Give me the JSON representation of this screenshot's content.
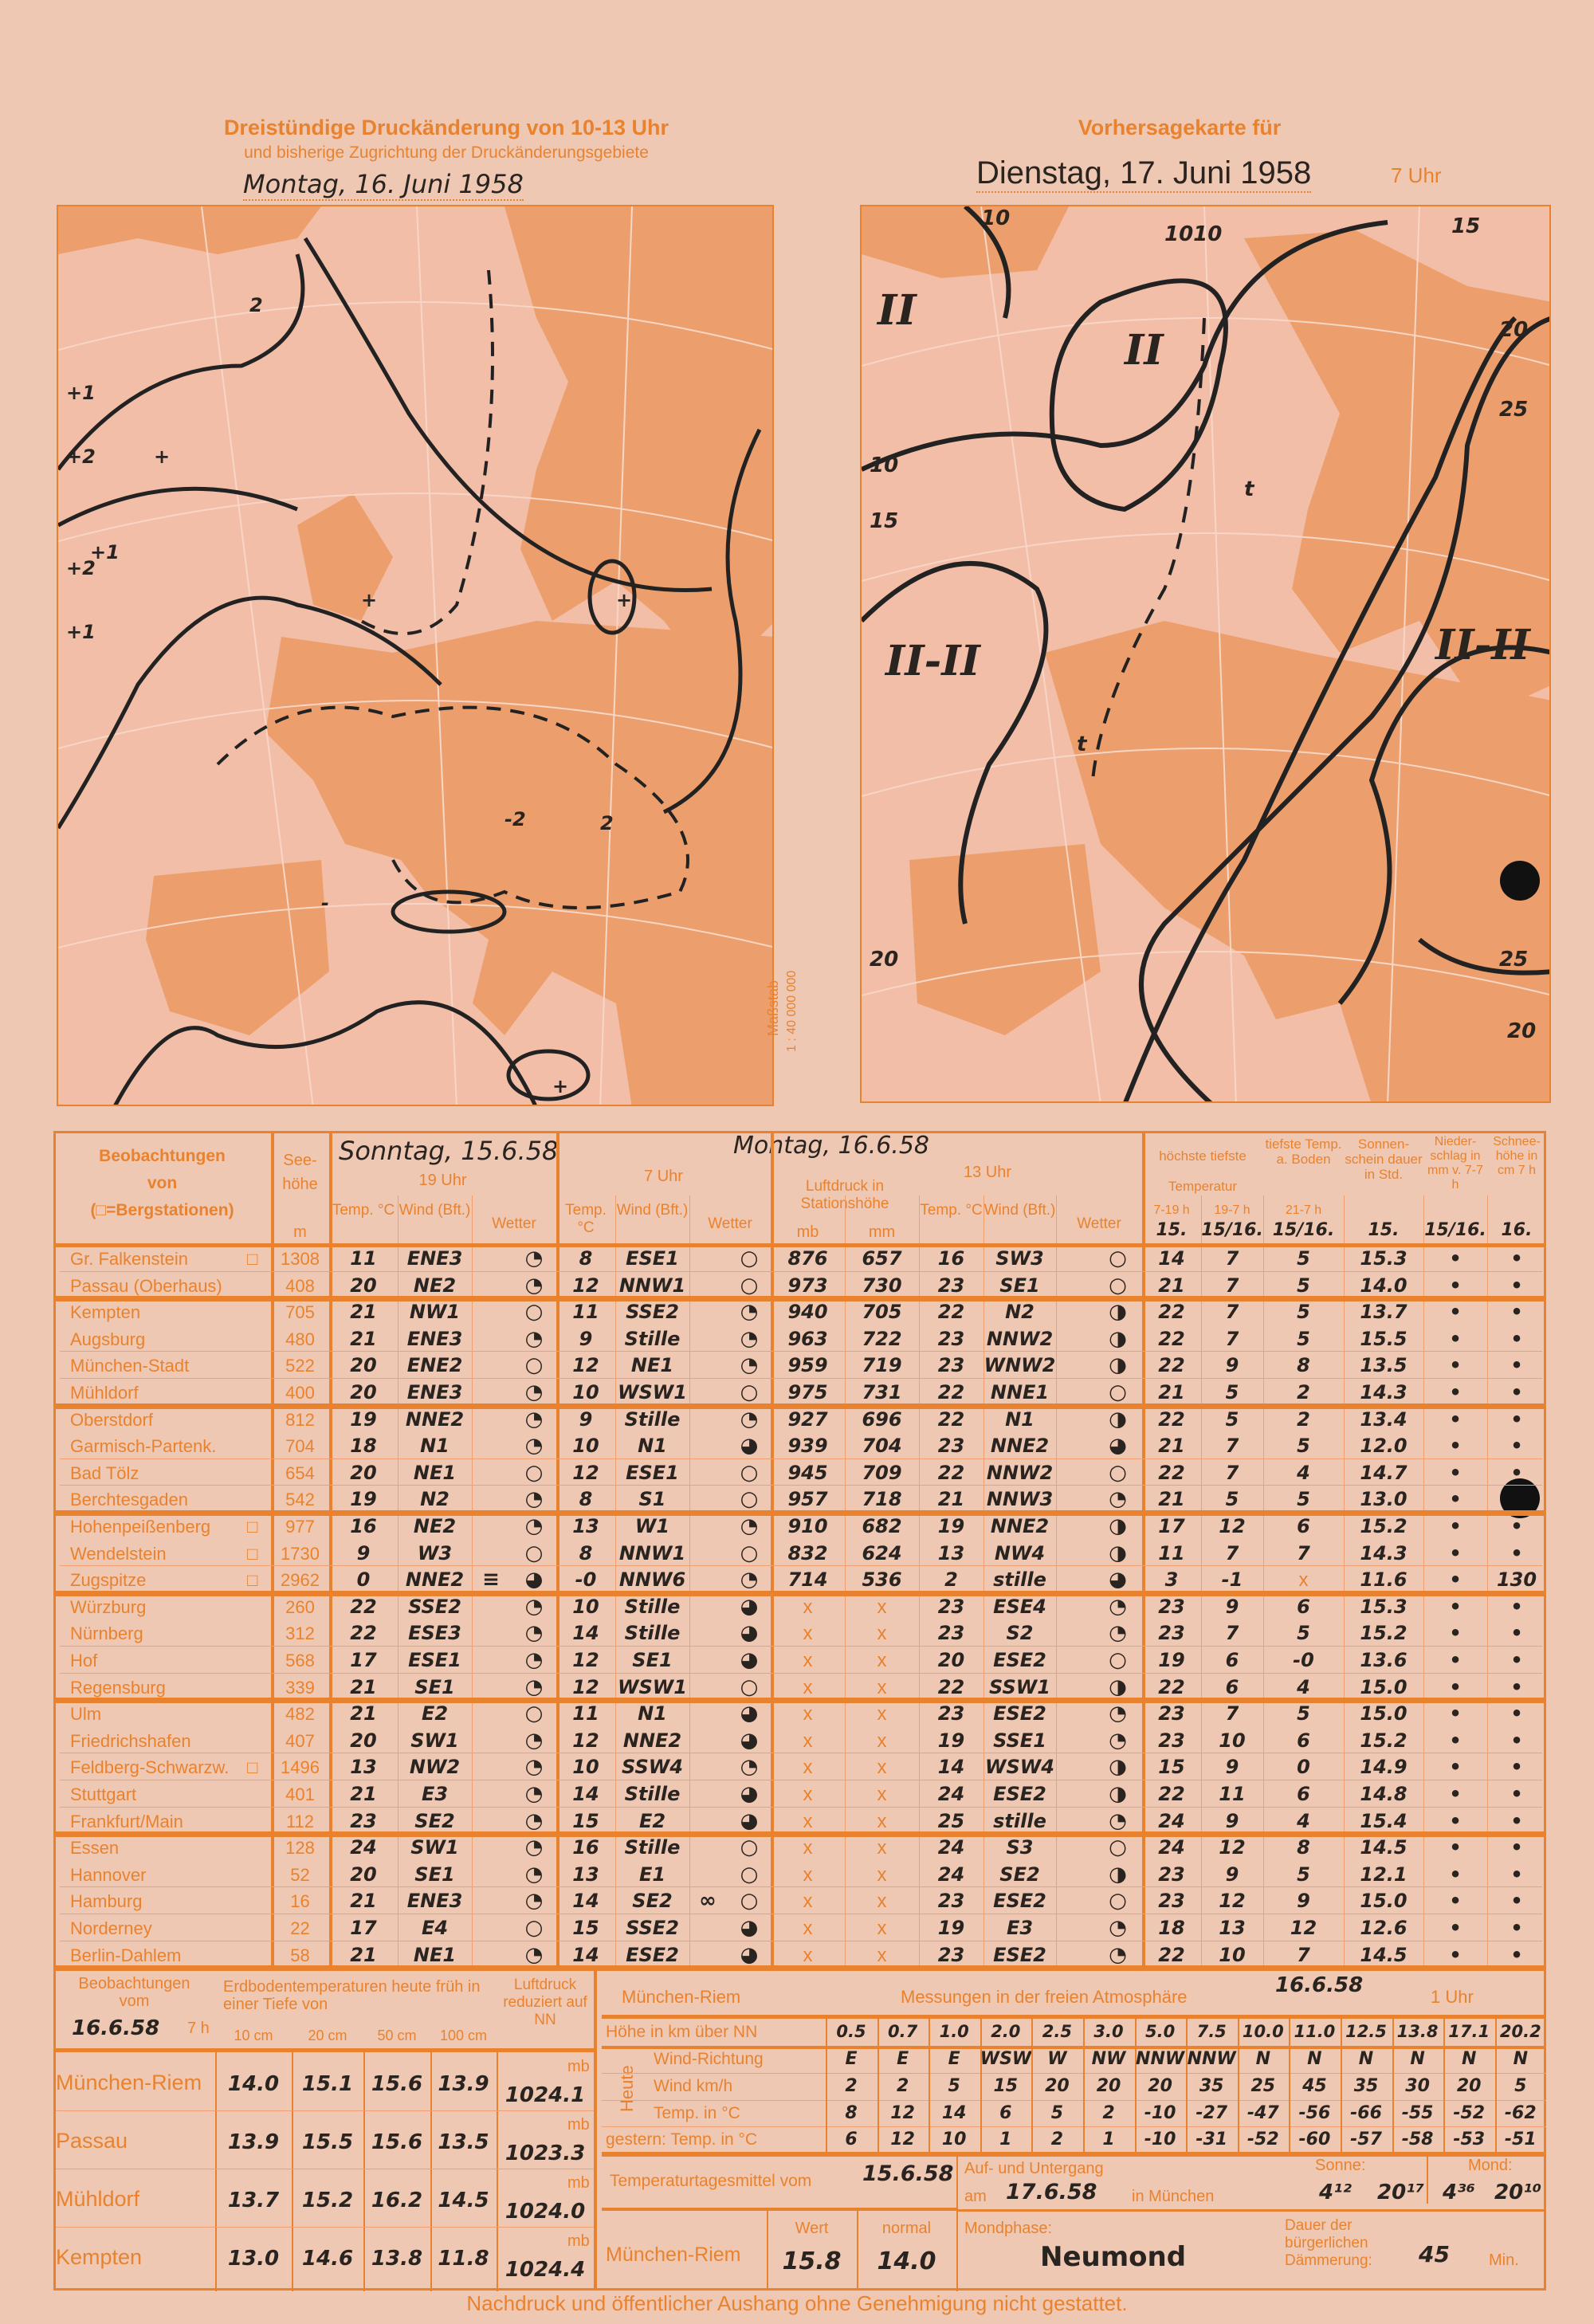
{
  "left_map": {
    "title": "Dreistündige Druckänderung von 10-13 Uhr",
    "subtitle": "und bisherige Zugrichtung der Druckänderungsgebiete",
    "date": "Montag, 16. Juni 1958",
    "labels": [
      "+1",
      "+2",
      "+2",
      "+1",
      "+1",
      "2",
      "-2",
      "2",
      "+",
      "+",
      "+",
      "-",
      "+"
    ]
  },
  "scale": {
    "label": "Maßstab",
    "value": "1 : 40 000 000"
  },
  "right_map": {
    "title": "Vorhersagekarte für",
    "date": "Dienstag, 17. Juni 1958",
    "time": "7 Uhr",
    "labels": [
      "II",
      "II",
      "II-II",
      "II-II",
      "1010",
      "10",
      "15",
      "15",
      "20",
      "20",
      "25",
      "25",
      "20",
      "10",
      "t",
      "t"
    ]
  },
  "table": {
    "head": {
      "station": [
        "Beobachtungen",
        "von",
        "(□=Bergstationen)"
      ],
      "height": [
        "See-",
        "höhe",
        "m"
      ],
      "sunday_date": "Sonntag, 15.6.58",
      "sunday_time": "19 Uhr",
      "monday_date": "Montag, 16.6.58",
      "t7": "7 Uhr",
      "t13": "13 Uhr",
      "temp": "Temp. °C",
      "wind": "Wind (Bft.)",
      "wetter": "Wetter",
      "pressure": "Luftdruck in Stationshöhe",
      "mb": "mb",
      "mm": "mm",
      "maxmin": "höchste  tiefste",
      "temperatur": "Temperatur",
      "h719": "7-19 h",
      "h197": "19-7 h",
      "ground": "tiefste Temp. a. Boden",
      "h217": "21-7 h",
      "sun": "Sonnen-schein dauer in Std.",
      "precip": "Nieder-schlag in mm v. 7-7 h",
      "snow": "Schnee-höhe in cm 7 h",
      "dates": [
        "15.",
        "15/16.",
        "15/16.",
        "15.",
        "15/16.",
        "16."
      ]
    },
    "groups": [
      2,
      4,
      4,
      3,
      4,
      5,
      5
    ],
    "rows": [
      [
        "Gr. Falkenstein",
        "□",
        "1308",
        "11",
        "ENE3",
        "◔",
        "",
        "8",
        "ESE1",
        "○",
        "",
        "876",
        "657",
        "16",
        "SW3",
        "○",
        "14",
        "7",
        "5",
        "15.3",
        "•",
        "•"
      ],
      [
        "Passau (Oberhaus)",
        "",
        "408",
        "20",
        "NE2",
        "◔",
        "",
        "12",
        "NNW1",
        "○",
        "",
        "973",
        "730",
        "23",
        "SE1",
        "○",
        "21",
        "7",
        "5",
        "14.0",
        "•",
        "•"
      ],
      [
        "Kempten",
        "",
        "705",
        "21",
        "NW1",
        "○",
        "",
        "11",
        "SSE2",
        "◔",
        "",
        "940",
        "705",
        "22",
        "N2",
        "◑",
        "22",
        "7",
        "5",
        "13.7",
        "•",
        "•"
      ],
      [
        "Augsburg",
        "",
        "480",
        "21",
        "ENE3",
        "◔",
        "",
        "9",
        "Stille",
        "◔",
        "",
        "963",
        "722",
        "23",
        "NNW2",
        "◑",
        "22",
        "7",
        "5",
        "15.5",
        "•",
        "•"
      ],
      [
        "München-Stadt",
        "",
        "522",
        "20",
        "ENE2",
        "○",
        "",
        "12",
        "NE1",
        "◔",
        "",
        "959",
        "719",
        "23",
        "WNW2",
        "◑",
        "22",
        "9",
        "8",
        "13.5",
        "•",
        "•"
      ],
      [
        "Mühldorf",
        "",
        "400",
        "20",
        "ENE3",
        "◔",
        "",
        "10",
        "WSW1",
        "○",
        "",
        "975",
        "731",
        "22",
        "NNE1",
        "○",
        "21",
        "5",
        "2",
        "14.3",
        "•",
        "•"
      ],
      [
        "Oberstdorf",
        "",
        "812",
        "19",
        "NNE2",
        "◔",
        "",
        "9",
        "Stille",
        "◔",
        "",
        "927",
        "696",
        "22",
        "N1",
        "◑",
        "22",
        "5",
        "2",
        "13.4",
        "•",
        "•"
      ],
      [
        "Garmisch-Partenk.",
        "",
        "704",
        "18",
        "N1",
        "◔",
        "",
        "10",
        "N1",
        "◕",
        "",
        "939",
        "704",
        "23",
        "NNE2",
        "◕",
        "21",
        "7",
        "5",
        "12.0",
        "•",
        "•"
      ],
      [
        "Bad Tölz",
        "",
        "654",
        "20",
        "NE1",
        "○",
        "",
        "12",
        "ESE1",
        "○",
        "",
        "945",
        "709",
        "22",
        "NNW2",
        "○",
        "22",
        "7",
        "4",
        "14.7",
        "•",
        "•"
      ],
      [
        "Berchtesgaden",
        "",
        "542",
        "19",
        "N2",
        "◔",
        "",
        "8",
        "S1",
        "○",
        "",
        "957",
        "718",
        "21",
        "NNW3",
        "◔",
        "21",
        "5",
        "5",
        "13.0",
        "•",
        ""
      ],
      [
        "Hohenpeißenberg",
        "□",
        "977",
        "16",
        "NE2",
        "◔",
        "",
        "13",
        "W1",
        "◔",
        "",
        "910",
        "682",
        "19",
        "NNE2",
        "◑",
        "17",
        "12",
        "6",
        "15.2",
        "•",
        "•"
      ],
      [
        "Wendelstein",
        "□",
        "1730",
        "9",
        "W3",
        "○",
        "",
        "8",
        "NNW1",
        "○",
        "",
        "832",
        "624",
        "13",
        "NW4",
        "◑",
        "11",
        "7",
        "7",
        "14.3",
        "•",
        "•"
      ],
      [
        "Zugspitze",
        "□",
        "2962",
        "0",
        "NNE2",
        "◕",
        "≡",
        "-0",
        "NNW6",
        "◔",
        "",
        "714",
        "536",
        "2",
        "stille",
        "◕",
        "3",
        "-1",
        "x",
        "11.6",
        "•",
        "130"
      ],
      [
        "Würzburg",
        "",
        "260",
        "22",
        "SSE2",
        "◔",
        "",
        "10",
        "Stille",
        "◕",
        "",
        "x",
        "x",
        "23",
        "ESE4",
        "◔",
        "23",
        "9",
        "6",
        "15.3",
        "•",
        "•"
      ],
      [
        "Nürnberg",
        "",
        "312",
        "22",
        "ESE3",
        "◔",
        "",
        "14",
        "Stille",
        "◕",
        "",
        "x",
        "x",
        "23",
        "S2",
        "◔",
        "23",
        "7",
        "5",
        "15.2",
        "•",
        "•"
      ],
      [
        "Hof",
        "",
        "568",
        "17",
        "ESE1",
        "◔",
        "",
        "12",
        "SE1",
        "◕",
        "",
        "x",
        "x",
        "20",
        "ESE2",
        "○",
        "19",
        "6",
        "-0",
        "13.6",
        "•",
        "•"
      ],
      [
        "Regensburg",
        "",
        "339",
        "21",
        "SE1",
        "◔",
        "",
        "12",
        "WSW1",
        "○",
        "",
        "x",
        "x",
        "22",
        "SSW1",
        "◑",
        "22",
        "6",
        "4",
        "15.0",
        "•",
        "•"
      ],
      [
        "Ulm",
        "",
        "482",
        "21",
        "E2",
        "○",
        "",
        "11",
        "N1",
        "◕",
        "",
        "x",
        "x",
        "23",
        "ESE2",
        "◔",
        "23",
        "7",
        "5",
        "15.0",
        "•",
        "•"
      ],
      [
        "Friedrichshafen",
        "",
        "407",
        "20",
        "SW1",
        "◔",
        "",
        "12",
        "NNE2",
        "◕",
        "",
        "x",
        "x",
        "19",
        "SSE1",
        "◔",
        "23",
        "10",
        "6",
        "15.2",
        "•",
        "•"
      ],
      [
        "Feldberg-Schwarzw.",
        "□",
        "1496",
        "13",
        "NW2",
        "◔",
        "",
        "10",
        "SSW4",
        "◔",
        "",
        "x",
        "x",
        "14",
        "WSW4",
        "◑",
        "15",
        "9",
        "0",
        "14.9",
        "•",
        "•"
      ],
      [
        "Stuttgart",
        "",
        "401",
        "21",
        "E3",
        "◔",
        "",
        "14",
        "Stille",
        "◕",
        "",
        "x",
        "x",
        "24",
        "ESE2",
        "◑",
        "22",
        "11",
        "6",
        "14.8",
        "•",
        "•"
      ],
      [
        "Frankfurt/Main",
        "",
        "112",
        "23",
        "SE2",
        "◔",
        "",
        "15",
        "E2",
        "◕",
        "",
        "x",
        "x",
        "25",
        "stille",
        "◔",
        "24",
        "9",
        "4",
        "15.4",
        "•",
        "•"
      ],
      [
        "Essen",
        "",
        "128",
        "24",
        "SW1",
        "◔",
        "",
        "16",
        "Stille",
        "○",
        "",
        "x",
        "x",
        "24",
        "S3",
        "○",
        "24",
        "12",
        "8",
        "14.5",
        "•",
        "•"
      ],
      [
        "Hannover",
        "",
        "52",
        "20",
        "SE1",
        "◔",
        "",
        "13",
        "E1",
        "○",
        "",
        "x",
        "x",
        "24",
        "SE2",
        "◑",
        "23",
        "9",
        "5",
        "12.1",
        "•",
        "•"
      ],
      [
        "Hamburg",
        "",
        "16",
        "21",
        "ENE3",
        "◔",
        "",
        "14",
        "SE2",
        "○",
        "∞",
        "x",
        "x",
        "23",
        "ESE2",
        "○",
        "23",
        "12",
        "9",
        "15.0",
        "•",
        "•"
      ],
      [
        "Norderney",
        "",
        "22",
        "17",
        "E4",
        "○",
        "",
        "15",
        "SSE2",
        "◕",
        "",
        "x",
        "x",
        "19",
        "E3",
        "◔",
        "18",
        "13",
        "12",
        "12.6",
        "•",
        "•"
      ],
      [
        "Berlin-Dahlem",
        "",
        "58",
        "21",
        "NE1",
        "◔",
        "",
        "14",
        "ESE2",
        "◕",
        "",
        "x",
        "x",
        "23",
        "ESE2",
        "◔",
        "22",
        "10",
        "7",
        "14.5",
        "•",
        "•"
      ]
    ]
  },
  "soil": {
    "head": [
      "Beobachtungen",
      "vom"
    ],
    "date": "16.6.58",
    "time": "7 h",
    "title": "Erdbodentemperaturen heute früh in einer Tiefe von",
    "depths": [
      "10 cm",
      "20 cm",
      "50 cm",
      "100 cm"
    ],
    "pressure_head": "Luftdruck reduziert auf NN",
    "unit": "mb",
    "rows": [
      [
        "München-Riem",
        "14.0",
        "15.1",
        "15.6",
        "13.9",
        "1024.1"
      ],
      [
        "Passau",
        "13.9",
        "15.5",
        "15.6",
        "13.5",
        "1023.3"
      ],
      [
        "Mühldorf",
        "13.7",
        "15.2",
        "16.2",
        "14.5",
        "1024.0"
      ],
      [
        "Kempten",
        "13.0",
        "14.6",
        "13.8",
        "11.8",
        "1024.4"
      ]
    ]
  },
  "atmosphere": {
    "station": "München-Riem",
    "title": "Messungen in der freien Atmosphäre",
    "date": "16.6.58",
    "time": "1 Uhr",
    "heute": "Heute",
    "labels": [
      "Höhe in km über NN",
      "Wind-Richtung",
      "Wind km/h",
      "Temp. in °C",
      "gestern: Temp. in °C"
    ],
    "heights": [
      "0.5",
      "0.7",
      "1.0",
      "2.0",
      "2.5",
      "3.0",
      "5.0",
      "7.5",
      "10.0",
      "11.0",
      "12.5",
      "13.8",
      "17.1",
      "20.2"
    ],
    "wind_dir": [
      "E",
      "E",
      "E",
      "WSW",
      "W",
      "NW",
      "NNW",
      "NNW",
      "N",
      "N",
      "N",
      "N",
      "N",
      "N"
    ],
    "wind_kmh": [
      "2",
      "2",
      "5",
      "15",
      "20",
      "20",
      "20",
      "35",
      "25",
      "45",
      "35",
      "30",
      "20",
      "5"
    ],
    "temp": [
      "8",
      "12",
      "14",
      "6",
      "5",
      "2",
      "-10",
      "-27",
      "-47",
      "-56",
      "-66",
      "-55",
      "-52",
      "-62"
    ],
    "temp_yesterday": [
      "6",
      "12",
      "10",
      "1",
      "2",
      "1",
      "-10",
      "-31",
      "-52",
      "-60",
      "-57",
      "-58",
      "-53",
      "-51"
    ]
  },
  "daily_mean": {
    "label": "Temperaturtagesmittel vom",
    "date": "15.6.58",
    "station": "München-Riem",
    "wert_label": "Wert",
    "wert": "15.8",
    "normal_label": "normal",
    "normal": "14.0"
  },
  "rise_set": {
    "label": "Auf- und Untergang",
    "am": "am",
    "date": "17.6.58",
    "place": "in München",
    "sun_label": "Sonne:",
    "sunrise": "4¹²",
    "sunset": "20¹⁷",
    "moon_label": "Mond:",
    "moonrise": "4³⁶",
    "moonset": "20¹⁰"
  },
  "moon": {
    "label": "Mondphase:",
    "value": "Neumond"
  },
  "twilight": {
    "label": "Dauer der bürgerlichen Dämmerung:",
    "value": "45",
    "unit": "Min."
  },
  "footer": "Nachdruck und öffentlicher Aushang ohne Genehmigung nicht gestattet.",
  "colors": {
    "paper": "#efc8b3",
    "print": "#e8822e",
    "land": "#eb9a62",
    "sea": "#f2bea8",
    "ink": "#2a2420"
  }
}
